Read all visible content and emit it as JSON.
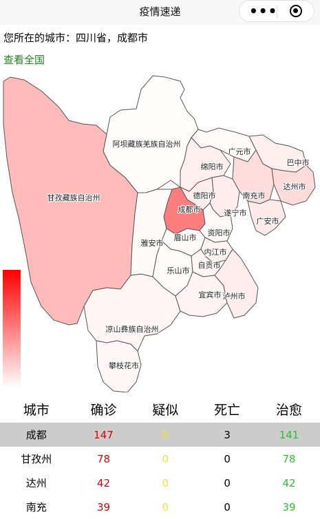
{
  "nav": {
    "title": "疫情速递",
    "more_icon": "more-dots-icon",
    "close_icon": "target-close-icon"
  },
  "location_text": "您所在的城市：四川省，成都市",
  "view_all_label": "查看全国",
  "map": {
    "regions": [
      {
        "name": "阿坝藏族羌族自治州",
        "level": 0.02
      },
      {
        "name": "甘孜藏族自治州",
        "level": 0.53
      },
      {
        "name": "凉山彝族自治州",
        "level": 0.08
      },
      {
        "name": "攀枝花市",
        "level": 0.06
      },
      {
        "name": "广元市",
        "level": 0.03
      },
      {
        "name": "巴中市",
        "level": 0.12
      },
      {
        "name": "绵阳市",
        "level": 0.12
      },
      {
        "name": "南充市",
        "level": 0.26
      },
      {
        "name": "达州市",
        "level": 0.28
      },
      {
        "name": "德阳市",
        "level": 0.14
      },
      {
        "name": "成都市",
        "level": 1.0
      },
      {
        "name": "遂宁市",
        "level": 0.14
      },
      {
        "name": "广安市",
        "level": 0.17
      },
      {
        "name": "资阳市",
        "level": 0.05
      },
      {
        "name": "雅安市",
        "level": 0.04
      },
      {
        "name": "眉山市",
        "level": 0.05
      },
      {
        "name": "内江市",
        "level": 0.1
      },
      {
        "name": "乐山市",
        "level": 0.03
      },
      {
        "name": "自贡市",
        "level": 0.08
      },
      {
        "name": "宜宾市",
        "level": 0.09
      },
      {
        "name": "泸州市",
        "level": 0.15
      }
    ],
    "accent": "#ff0000"
  },
  "table": {
    "headers": [
      "城市",
      "确诊",
      "疑似",
      "死亡",
      "治愈"
    ],
    "rows": [
      {
        "city": "成都",
        "confirmed": "147",
        "suspected": "0",
        "deaths": "3",
        "cured": "141"
      },
      {
        "city": "甘孜州",
        "confirmed": "78",
        "suspected": "0",
        "deaths": "0",
        "cured": "78"
      },
      {
        "city": "达州",
        "confirmed": "42",
        "suspected": "0",
        "deaths": "0",
        "cured": "42"
      },
      {
        "city": "南充",
        "confirmed": "39",
        "suspected": "0",
        "deaths": "0",
        "cured": "39"
      }
    ]
  }
}
